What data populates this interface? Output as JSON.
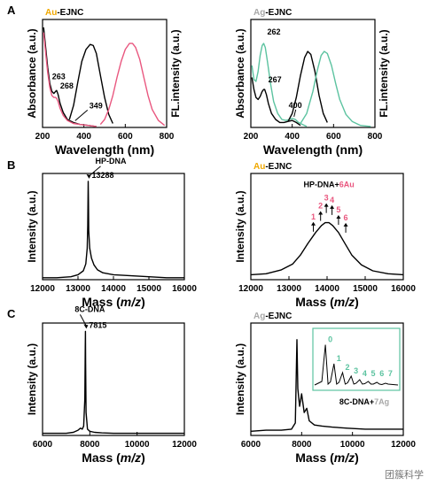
{
  "figure": {
    "panel_labels": [
      "A",
      "B",
      "C"
    ],
    "watermark": "团簇科学"
  },
  "colors": {
    "au": "#f0a800",
    "ag": "#a8a8a8",
    "abs": "#000000",
    "fl_au": "#e9577f",
    "fl_ag": "#5cc3a0",
    "peak_num_au": "#e9577f",
    "peak_num_ag": "#5cc3a0",
    "inset_frame": "#5cc3a0"
  },
  "chart_data": [
    {
      "id": "A-left",
      "type": "line",
      "title_prefix": "Au",
      "title_suffix": "-EJNC",
      "xlabel": "Wavelength (nm)",
      "ylabel": "Absorbance (a.u.)",
      "ylabel_right": "FL.intensity (a.u.)",
      "xlim": [
        200,
        800
      ],
      "xticks": [
        200,
        400,
        600,
        800
      ],
      "series": [
        {
          "color": "abs",
          "x": [
            205,
            215,
            225,
            235,
            245,
            255,
            263,
            268,
            275,
            285,
            300,
            320,
            349,
            380,
            420,
            460
          ],
          "y": [
            1.0,
            0.8,
            0.6,
            0.44,
            0.36,
            0.34,
            0.36,
            0.37,
            0.33,
            0.24,
            0.15,
            0.08,
            0.05,
            0.03,
            0.02,
            0.01
          ]
        },
        {
          "color": "fl_au",
          "x": [
            205,
            215,
            225,
            235,
            245,
            255,
            263,
            268,
            275,
            285,
            300,
            320,
            349,
            380,
            420,
            460
          ],
          "y": [
            0.95,
            0.75,
            0.55,
            0.4,
            0.32,
            0.3,
            0.3,
            0.29,
            0.26,
            0.19,
            0.12,
            0.07,
            0.04,
            0.03,
            0.02,
            0.01
          ]
        },
        {
          "color": "abs",
          "x": [
            330,
            350,
            370,
            390,
            410,
            430,
            445,
            460,
            480,
            500,
            520,
            540
          ],
          "y": [
            0.08,
            0.22,
            0.45,
            0.66,
            0.78,
            0.83,
            0.82,
            0.74,
            0.52,
            0.3,
            0.13,
            0.04
          ]
        },
        {
          "color": "fl_au",
          "x": [
            480,
            500,
            520,
            540,
            560,
            580,
            600,
            620,
            635,
            650,
            670,
            690,
            710,
            730,
            760,
            790
          ],
          "y": [
            0.03,
            0.08,
            0.18,
            0.32,
            0.5,
            0.66,
            0.78,
            0.84,
            0.84,
            0.8,
            0.68,
            0.5,
            0.32,
            0.18,
            0.07,
            0.02
          ]
        }
      ],
      "annotations": [
        {
          "text": "263",
          "x": 263,
          "y": 0.36
        },
        {
          "text": "268",
          "x": 268,
          "y": 0.37
        },
        {
          "text": "349",
          "x": 349,
          "y": 0.05
        }
      ]
    },
    {
      "id": "A-right",
      "type": "line",
      "title_prefix": "Ag",
      "title_suffix": "-EJNC",
      "xlabel": "Wavelength (nm)",
      "ylabel": "Absorbance (a.u.)",
      "ylabel_right": "FL.intensity (a.u.)",
      "xlim": [
        200,
        800
      ],
      "xticks": [
        200,
        400,
        600,
        800
      ],
      "series": [
        {
          "color": "fl_ag",
          "x": [
            205,
            215,
            225,
            235,
            245,
            255,
            262,
            270,
            280,
            295,
            310,
            330,
            350,
            370,
            385,
            400,
            415,
            430,
            450,
            470
          ],
          "y": [
            0.62,
            0.48,
            0.46,
            0.56,
            0.72,
            0.82,
            0.84,
            0.8,
            0.66,
            0.44,
            0.26,
            0.14,
            0.08,
            0.07,
            0.08,
            0.09,
            0.08,
            0.05,
            0.03,
            0.01
          ]
        },
        {
          "color": "abs",
          "x": [
            205,
            215,
            225,
            235,
            245,
            255,
            262,
            267,
            275,
            285,
            300,
            320,
            340,
            360,
            380,
            400,
            420,
            440
          ],
          "y": [
            0.5,
            0.38,
            0.3,
            0.28,
            0.31,
            0.36,
            0.38,
            0.38,
            0.33,
            0.24,
            0.14,
            0.08,
            0.05,
            0.05,
            0.06,
            0.07,
            0.05,
            0.02
          ]
        },
        {
          "color": "abs",
          "x": [
            380,
            400,
            420,
            440,
            460,
            475,
            490,
            510,
            530,
            550,
            570
          ],
          "y": [
            0.06,
            0.14,
            0.3,
            0.52,
            0.7,
            0.76,
            0.73,
            0.56,
            0.32,
            0.14,
            0.05
          ]
        },
        {
          "color": "fl_ag",
          "x": [
            440,
            470,
            500,
            520,
            540,
            555,
            570,
            590,
            610,
            630,
            660,
            690,
            730,
            780
          ],
          "y": [
            0.04,
            0.14,
            0.36,
            0.56,
            0.72,
            0.76,
            0.74,
            0.62,
            0.44,
            0.28,
            0.13,
            0.06,
            0.02,
            0.01
          ]
        }
      ],
      "annotations": [
        {
          "text": "262",
          "x": 262,
          "y": 0.84
        },
        {
          "text": "267",
          "x": 267,
          "y": 0.38
        },
        {
          "text": "400",
          "x": 400,
          "y": 0.09
        }
      ]
    },
    {
      "id": "B-left",
      "type": "line",
      "xlabel_prefix": "Mass (",
      "xlabel_italic": "m/z",
      "xlabel_suffix": ")",
      "ylabel": "Intensity (a.u.)",
      "xlim": [
        12000,
        16000
      ],
      "xticks": [
        12000,
        13000,
        14000,
        15000,
        16000
      ],
      "series": [
        {
          "color": "abs",
          "x": [
            12000,
            12400,
            12800,
            13000,
            13150,
            13220,
            13260,
            13275,
            13282,
            13288,
            13294,
            13302,
            13330,
            13380,
            13450,
            13550,
            13700,
            14000,
            14500,
            15000,
            15500,
            16000
          ],
          "y": [
            0.02,
            0.02,
            0.03,
            0.05,
            0.09,
            0.16,
            0.32,
            0.55,
            0.82,
            1.0,
            0.8,
            0.5,
            0.32,
            0.22,
            0.15,
            0.1,
            0.07,
            0.05,
            0.04,
            0.03,
            0.02,
            0.02
          ]
        }
      ],
      "annotations": [
        {
          "text": "HP-DNA",
          "x": 13288,
          "y": 1.0
        },
        {
          "text": "13288",
          "x": 13288,
          "y": 1.0
        }
      ]
    },
    {
      "id": "B-right",
      "type": "line",
      "title_prefix": "Au",
      "title_suffix": "-EJNC",
      "xlabel_prefix": "Mass (",
      "xlabel_italic": "m/z",
      "xlabel_suffix": ")",
      "ylabel": "Intensity (a.u.)",
      "xlim": [
        12000,
        16000
      ],
      "xticks": [
        12000,
        13000,
        14000,
        15000,
        16000
      ],
      "series": [
        {
          "color": "abs",
          "x": [
            12000,
            12400,
            12800,
            13100,
            13300,
            13500,
            13700,
            13850,
            13950,
            14050,
            14150,
            14300,
            14450,
            14650,
            14900,
            15200,
            15600,
            16000
          ],
          "y": [
            0.05,
            0.06,
            0.1,
            0.16,
            0.25,
            0.37,
            0.48,
            0.55,
            0.58,
            0.58,
            0.55,
            0.48,
            0.38,
            0.25,
            0.15,
            0.09,
            0.06,
            0.05
          ]
        }
      ],
      "label_prefix": "HP-DNA+",
      "label_highlight": "6Au",
      "label_pos": {
        "x": 14050,
        "y": 0.94
      },
      "peaks": [
        {
          "label": "1",
          "x": 13640,
          "y": 0.47
        },
        {
          "label": "2",
          "x": 13830,
          "y": 0.58
        },
        {
          "label": "3",
          "x": 13980,
          "y": 0.66
        },
        {
          "label": "4",
          "x": 14130,
          "y": 0.64
        },
        {
          "label": "5",
          "x": 14300,
          "y": 0.54
        },
        {
          "label": "6",
          "x": 14490,
          "y": 0.46
        }
      ]
    },
    {
      "id": "C-left",
      "type": "line",
      "xlabel_prefix": "Mass (",
      "xlabel_italic": "m/z",
      "xlabel_suffix": ")",
      "ylabel": "Intensity (a.u.)",
      "xlim": [
        6000,
        12000
      ],
      "xticks": [
        6000,
        8000,
        10000,
        12000
      ],
      "series": [
        {
          "color": "abs",
          "x": [
            6000,
            6500,
            7000,
            7300,
            7500,
            7600,
            7680,
            7740,
            7790,
            7808,
            7815,
            7822,
            7840,
            7900,
            8000,
            8200,
            8500,
            9000,
            10000,
            11000,
            12000
          ],
          "y": [
            0.02,
            0.02,
            0.02,
            0.03,
            0.05,
            0.07,
            0.06,
            0.09,
            0.35,
            0.85,
            1.0,
            0.7,
            0.22,
            0.06,
            0.04,
            0.03,
            0.025,
            0.02,
            0.02,
            0.02,
            0.02
          ]
        }
      ],
      "annotations": [
        {
          "text": "8C-DNA",
          "x": 7815,
          "y": 1.0
        },
        {
          "text": "7815",
          "x": 7815,
          "y": 1.0
        }
      ]
    },
    {
      "id": "C-right",
      "type": "line",
      "title_prefix": "Ag",
      "title_suffix": "-EJNC",
      "xlabel_prefix": "Mass (",
      "xlabel_italic": "m/z",
      "xlabel_suffix": ")",
      "ylabel": "Intensity (a.u.)",
      "xlim": [
        6000,
        12000
      ],
      "xticks": [
        6000,
        8000,
        10000,
        12000
      ],
      "series": [
        {
          "color": "abs",
          "x": [
            6000,
            6600,
            7200,
            7600,
            7750,
            7815,
            7850,
            7920,
            8000,
            8100,
            8200,
            8300,
            8500,
            8800,
            9200,
            9800,
            10500,
            11200,
            12000
          ],
          "y": [
            0.04,
            0.05,
            0.05,
            0.06,
            0.12,
            0.92,
            0.45,
            0.28,
            0.4,
            0.22,
            0.26,
            0.14,
            0.1,
            0.09,
            0.08,
            0.07,
            0.06,
            0.06,
            0.06
          ]
        }
      ],
      "inset": {
        "label_prefix": "8C-DNA+",
        "label_highlight": "7Ag",
        "peaks": [
          {
            "label": "0",
            "x": 7815,
            "y": 0.95
          },
          {
            "label": "1",
            "x": 7925,
            "y": 0.52
          },
          {
            "label": "2",
            "x": 8035,
            "y": 0.32
          },
          {
            "label": "3",
            "x": 8145,
            "y": 0.24
          },
          {
            "label": "4",
            "x": 8255,
            "y": 0.16
          },
          {
            "label": "5",
            "x": 8365,
            "y": 0.12
          },
          {
            "label": "6",
            "x": 8475,
            "y": 0.1
          },
          {
            "label": "7",
            "x": 8585,
            "y": 0.08
          }
        ],
        "xlim": [
          7700,
          8700
        ]
      }
    }
  ]
}
